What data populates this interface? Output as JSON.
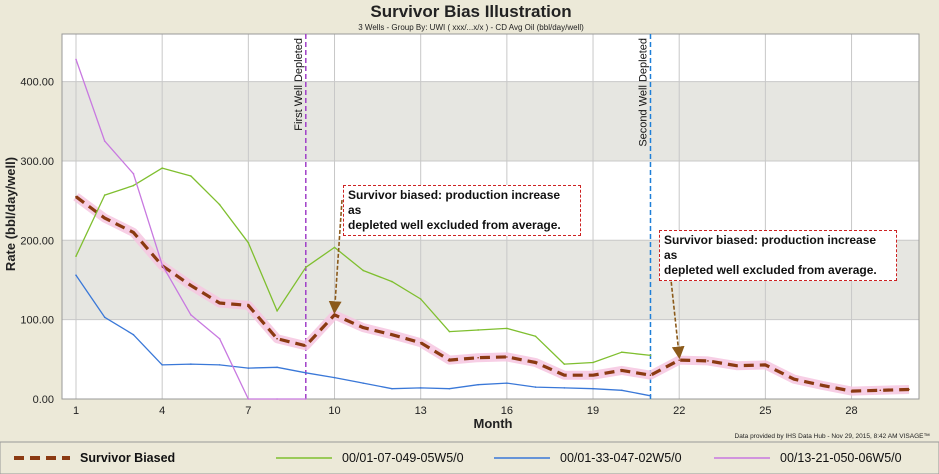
{
  "chart_data": {
    "type": "line",
    "title": "Survivor Bias Illustration",
    "subtitle": "3 Wells - Group By: UWI ( xxx/...x/x ) - CD Avg Oil (bbl/day/well)",
    "xlabel": "Month",
    "ylabel": "Rate (bbl/day/well)",
    "xlim": [
      1,
      30
    ],
    "ylim": [
      0,
      460
    ],
    "x_ticks": [
      "1",
      "4",
      "7",
      "10",
      "13",
      "16",
      "19",
      "22",
      "25",
      "28"
    ],
    "y_ticks": [
      "0.00",
      "100.00",
      "200.00",
      "300.00",
      "400.00"
    ],
    "series": [
      {
        "name": "Survivor Biased",
        "color": "#8b3a12",
        "style": "dashed-bold",
        "x": [
          1,
          2,
          3,
          4,
          5,
          6,
          7,
          8,
          9,
          10,
          11,
          12,
          13,
          14,
          15,
          16,
          17,
          18,
          19,
          20,
          21,
          22,
          23,
          24,
          25,
          26,
          27,
          28,
          29,
          30
        ],
        "values": [
          255,
          228,
          210,
          168,
          143,
          121,
          118,
          76,
          67,
          106,
          90,
          81,
          71,
          49,
          52,
          53,
          46,
          30,
          30,
          36,
          30,
          49,
          48,
          42,
          43,
          25,
          17,
          10,
          11,
          12
        ]
      },
      {
        "name": "00/01-07-049-05W5/0",
        "color": "#7fbf2f",
        "style": "solid",
        "x": [
          1,
          2,
          3,
          4,
          5,
          6,
          7,
          8,
          9,
          10,
          11,
          12,
          13,
          14,
          15,
          16,
          17,
          18,
          19,
          20,
          21
        ],
        "values": [
          180,
          257,
          269,
          291,
          281,
          245,
          197,
          111,
          166,
          191,
          162,
          148,
          126,
          85,
          87,
          89,
          79,
          44,
          46,
          59,
          55
        ]
      },
      {
        "name": "00/01-33-047-02W5/0",
        "color": "#3a78d8",
        "style": "solid",
        "x": [
          1,
          2,
          3,
          4,
          5,
          6,
          7,
          8,
          9,
          10,
          11,
          12,
          13,
          14,
          15,
          16,
          17,
          18,
          19,
          20,
          21
        ],
        "values": [
          156,
          103,
          81,
          43,
          44,
          43,
          39,
          40,
          33,
          27,
          20,
          13,
          14,
          13,
          18,
          20,
          15,
          14,
          13,
          11,
          4
        ]
      },
      {
        "name": "00/13-21-050-06W5/0",
        "color": "#c879e0",
        "style": "solid",
        "x": [
          1,
          2,
          3,
          4,
          5,
          6,
          7,
          8,
          9
        ],
        "values": [
          428,
          325,
          284,
          169,
          106,
          76,
          0,
          0,
          0
        ]
      }
    ],
    "annotations": [
      {
        "type": "vline",
        "x": 9,
        "label": "First Well Depleted",
        "color": "#a040c8"
      },
      {
        "type": "vline",
        "x": 21,
        "label": "Second Well Depleted",
        "color": "#1e7fd8"
      },
      {
        "type": "callout",
        "text_line1": "Survivor biased: production increase as",
        "text_line2": "depleted well excluded from average.",
        "target_x": 10,
        "target_y": 106
      },
      {
        "type": "callout",
        "text_line1": "Survivor biased: production increase as",
        "text_line2": "depleted well excluded from average.",
        "target_x": 22,
        "target_y": 49
      }
    ],
    "credit": "Data provided by IHS Data Hub - Nov 29, 2015, 8:42 AM VISAGE™",
    "grid": true,
    "legend_position": "bottom"
  }
}
